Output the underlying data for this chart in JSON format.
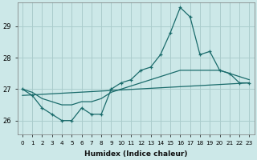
{
  "xlabel": "Humidex (Indice chaleur)",
  "bg_color": "#cce8e8",
  "grid_color": "#aacccc",
  "line_color": "#1a6b6b",
  "xlim": [
    -0.5,
    23.5
  ],
  "ylim": [
    25.55,
    29.75
  ],
  "yticks": [
    26,
    27,
    28,
    29
  ],
  "xticks": [
    0,
    1,
    2,
    3,
    4,
    5,
    6,
    7,
    8,
    9,
    10,
    11,
    12,
    13,
    14,
    15,
    16,
    17,
    18,
    19,
    20,
    21,
    22,
    23
  ],
  "line1_x": [
    0,
    1,
    2,
    3,
    4,
    5,
    6,
    7,
    8,
    9,
    10,
    11,
    12,
    13,
    14,
    15,
    16,
    17,
    18,
    19,
    20,
    21,
    22,
    23
  ],
  "line1_y": [
    27.0,
    26.8,
    26.4,
    26.2,
    26.0,
    26.0,
    26.4,
    26.2,
    26.2,
    27.0,
    27.2,
    27.3,
    27.6,
    27.7,
    28.1,
    28.8,
    29.6,
    29.3,
    28.1,
    28.2,
    27.6,
    27.5,
    27.2,
    27.2
  ],
  "line2_x": [
    0,
    1,
    2,
    3,
    4,
    5,
    6,
    7,
    8,
    9,
    10,
    11,
    12,
    13,
    14,
    15,
    16,
    17,
    18,
    19,
    20,
    21,
    22,
    23
  ],
  "line2_y": [
    27.0,
    26.9,
    26.7,
    26.6,
    26.5,
    26.5,
    26.6,
    26.6,
    26.7,
    26.9,
    27.0,
    27.1,
    27.2,
    27.3,
    27.4,
    27.5,
    27.6,
    27.6,
    27.6,
    27.6,
    27.6,
    27.5,
    27.4,
    27.3
  ],
  "line3_x": [
    0,
    23
  ],
  "line3_y": [
    26.8,
    27.2
  ]
}
